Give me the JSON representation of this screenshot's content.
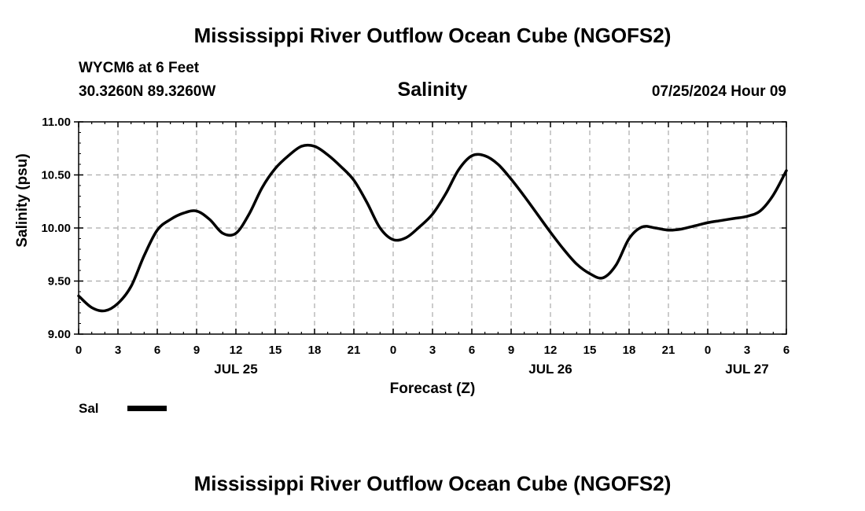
{
  "header": {
    "title": "Mississippi River Outflow Ocean Cube (NGOFS2)",
    "station": "WYCM6 at 6 Feet",
    "coords": "30.3260N  89.3260W",
    "date": "07/25/2024 Hour 09"
  },
  "footer": {
    "title": "Mississippi River Outflow Ocean Cube (NGOFS2)"
  },
  "chart_data": {
    "type": "line",
    "title": "Salinity",
    "xlabel": "Forecast (Z)",
    "ylabel": "Salinity (psu)",
    "ylim": [
      9.0,
      11.0
    ],
    "xlim": [
      0,
      54
    ],
    "grid": true,
    "yticks": [
      9.0,
      9.5,
      10.0,
      10.5,
      11.0
    ],
    "ytick_labels": [
      "9.00",
      "9.50",
      "10.00",
      "10.50",
      "11.00"
    ],
    "xticks": [
      0,
      3,
      6,
      9,
      12,
      15,
      18,
      21,
      24,
      27,
      30,
      33,
      36,
      39,
      42,
      45,
      48,
      51,
      54
    ],
    "xtick_labels": [
      "0",
      "3",
      "6",
      "9",
      "12",
      "15",
      "18",
      "21",
      "0",
      "3",
      "6",
      "9",
      "12",
      "15",
      "18",
      "21",
      "0",
      "3",
      "6"
    ],
    "day_labels": [
      {
        "x": 12,
        "label": "JUL 25"
      },
      {
        "x": 36,
        "label": "JUL 26"
      },
      {
        "x": 51,
        "label": "JUL 27"
      }
    ],
    "legend": {
      "placement": "bottom-left",
      "entries": [
        {
          "name": "Sal",
          "color": "#000000"
        }
      ]
    },
    "series": [
      {
        "name": "Sal",
        "color": "#000000",
        "x": [
          0,
          1,
          2,
          3,
          4,
          5,
          6,
          7,
          8,
          9,
          10,
          11,
          12,
          13,
          14,
          15,
          16,
          17,
          18,
          19,
          20,
          21,
          22,
          23,
          24,
          25,
          26,
          27,
          28,
          29,
          30,
          31,
          32,
          33,
          34,
          35,
          36,
          37,
          38,
          39,
          40,
          41,
          42,
          43,
          44,
          45,
          46,
          47,
          48,
          49,
          50,
          51,
          52,
          53,
          54
        ],
        "values": [
          9.36,
          9.25,
          9.22,
          9.29,
          9.45,
          9.74,
          9.98,
          10.08,
          10.14,
          10.16,
          10.08,
          9.95,
          9.95,
          10.13,
          10.38,
          10.56,
          10.68,
          10.77,
          10.77,
          10.69,
          10.58,
          10.45,
          10.24,
          10.0,
          9.89,
          9.91,
          10.01,
          10.13,
          10.32,
          10.55,
          10.68,
          10.68,
          10.6,
          10.46,
          10.3,
          10.13,
          9.96,
          9.8,
          9.66,
          9.57,
          9.53,
          9.65,
          9.9,
          10.01,
          10.0,
          9.98,
          9.99,
          10.02,
          10.05,
          10.07,
          10.09,
          10.11,
          10.16,
          10.31,
          10.54
        ]
      }
    ]
  }
}
